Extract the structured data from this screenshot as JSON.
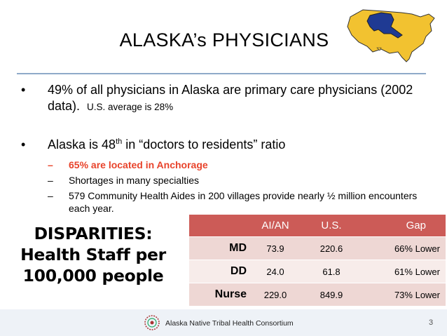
{
  "slide": {
    "title": "ALASKA’s PHYSICIANS",
    "bullets": {
      "b1_main": "49% of all physicians in Alaska are primary care physicians (2002 data).",
      "b1_small": "U.S. average is 28%",
      "b2_pre": "Alaska is 48",
      "b2_sup": "th",
      "b2_post": " in “doctors to residents” ratio",
      "bullet_glyph": "•",
      "dash_glyph": "–"
    },
    "subbullets": [
      {
        "text": "65% are located in Anchorage"
      },
      {
        "text": "Shortages in many specialties"
      },
      {
        "text": "579 Community Health Aides in 200 villages provide nearly ½ million encounters each year."
      }
    ],
    "disparities": {
      "line1": "DISPARITIES:",
      "line2": "Health Staff per",
      "line3": "100,000 people"
    },
    "table": {
      "headers": [
        "",
        "AI/AN",
        "U.S.",
        "Gap"
      ],
      "rows": [
        {
          "label": "MD",
          "aian": "73.9",
          "us": "220.6",
          "gap": "66% Lower"
        },
        {
          "label": "DD",
          "aian": "24.0",
          "us": "61.8",
          "gap": "61% Lower"
        },
        {
          "label": "Nurse",
          "aian": "229.0",
          "us": "849.9",
          "gap": "73% Lower"
        }
      ]
    },
    "footer": {
      "org": "Alaska Native Tribal Health Consortium",
      "page": "3"
    },
    "icons": {
      "map": "us-map-alaska-highlight-icon",
      "logo": "antchc-logo-icon"
    },
    "colors": {
      "map_fill": "#f2c230",
      "alaska_fill": "#1f3a93",
      "table_header": "#cc5b57",
      "highlight": "#e8432b",
      "rule": "#8faac9"
    }
  }
}
